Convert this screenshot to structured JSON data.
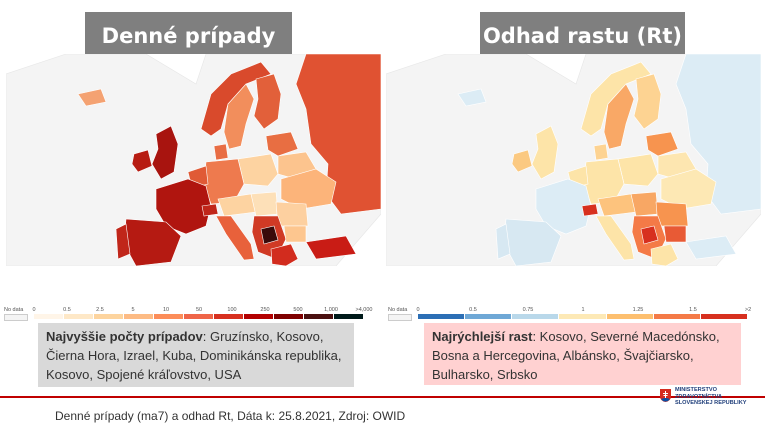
{
  "left_panel": {
    "title": "Denné prípady",
    "legend": {
      "no_data": "No data",
      "ticks": [
        "0",
        "0.5",
        "2.5",
        "5",
        "10",
        "50",
        "100",
        "250",
        "500",
        "1,000",
        ">4,000"
      ],
      "colors": [
        "#fff5e8",
        "#fee8c7",
        "#fdd49e",
        "#fdbb84",
        "#fc8d59",
        "#ef6548",
        "#d7301f",
        "#b30000",
        "#7f0000",
        "#4a1010",
        "#001a1a"
      ]
    },
    "note": {
      "label": "Najvyššie počty prípadov",
      "text": ": Gruzínsko, Kosovo, Čierna Hora, Izrael, Kuba, Dominikánska republika, Kosovo, Spojené kráľovstvo, USA"
    }
  },
  "right_panel": {
    "title": "Odhad rastu (Rt)",
    "legend": {
      "no_data": "No data",
      "ticks": [
        "0",
        "0.5",
        "0.75",
        "1",
        "1.25",
        "1.5",
        ">2"
      ],
      "colors": [
        "#2c6fb5",
        "#6fa8d6",
        "#b9d8ea",
        "#fde9b6",
        "#fdbf6f",
        "#f47a47",
        "#d7301f"
      ]
    },
    "note": {
      "label": "Najrýchlejší rast",
      "text": ": Kosovo, Severné Macedónsko, Bosna a Hercegovina, Albánsko, Švajčiarsko, Bulharsko, Srbsko"
    }
  },
  "footer": {
    "text": "Denné prípady (ma7) a odhad Rt, Dáta k: 25.8.2021, Zdroj: OWID"
  },
  "logo": {
    "lines": [
      "MINISTERSTVO",
      "ZDRAVOTNÍCTVA",
      "SLOVENSKEJ REPUBLIKY"
    ]
  }
}
